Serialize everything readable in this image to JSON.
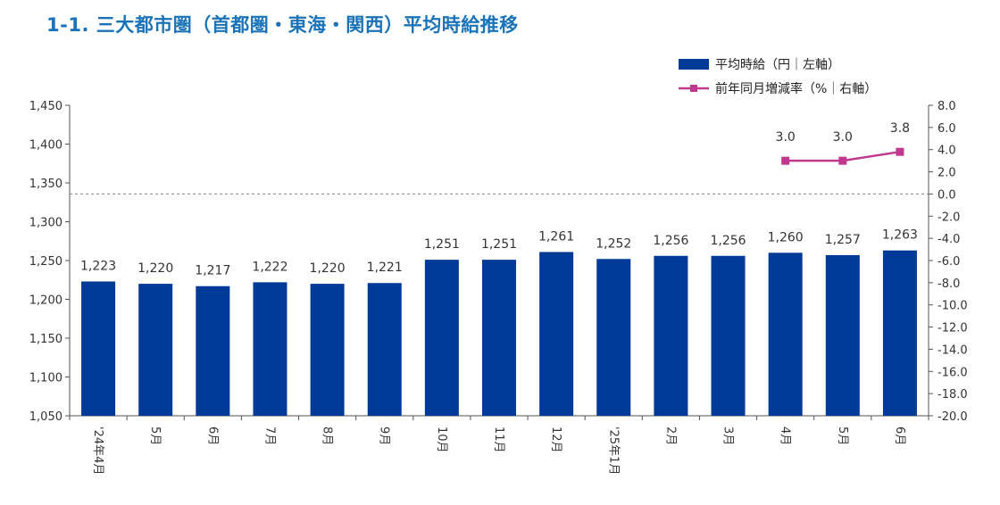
{
  "title": "1-1. 三大都市圏（首都圏・東海・関西）平均時給推移",
  "chart_data": {
    "type": "bar",
    "categories": [
      "'24年4月",
      "5月",
      "6月",
      "7月",
      "8月",
      "9月",
      "10月",
      "11月",
      "12月",
      "'25年1月",
      "2月",
      "3月",
      "4月",
      "5月",
      "6月"
    ],
    "series": [
      {
        "name": "平均時給（円｜左軸）",
        "type": "bar",
        "axis": "left",
        "color": "#003a99",
        "values": [
          1223,
          1220,
          1217,
          1222,
          1220,
          1221,
          1251,
          1251,
          1261,
          1252,
          1256,
          1256,
          1260,
          1257,
          1263
        ],
        "labels": [
          "1,223",
          "1,220",
          "1,217",
          "1,222",
          "1,220",
          "1,221",
          "1,251",
          "1,251",
          "1,261",
          "1,252",
          "1,256",
          "1,256",
          "1,260",
          "1,257",
          "1,263"
        ]
      },
      {
        "name": "前年同月増減率（%｜右軸）",
        "type": "line",
        "axis": "right",
        "color": "#c0398f",
        "values": [
          null,
          null,
          null,
          null,
          null,
          null,
          null,
          null,
          null,
          null,
          null,
          null,
          3.0,
          3.0,
          3.8
        ],
        "labels": [
          "",
          "",
          "",
          "",
          "",
          "",
          "",
          "",
          "",
          "",
          "",
          "",
          "3.0",
          "3.0",
          "3.8"
        ]
      }
    ],
    "y_left": {
      "min": 1050,
      "max": 1450,
      "ticks": [
        1450,
        1400,
        1350,
        1300,
        1250,
        1200,
        1150,
        1100,
        1050
      ],
      "tick_labels": [
        "1,450",
        "1,400",
        "1,350",
        "1,300",
        "1,250",
        "1,200",
        "1,150",
        "1,100",
        "1,050"
      ]
    },
    "y_right": {
      "min": -20,
      "max": 8,
      "ticks": [
        8,
        6,
        4,
        2,
        0,
        -2,
        -4,
        -6,
        -8,
        -10,
        -12,
        -14,
        -16,
        -18,
        -20
      ],
      "tick_labels": [
        "8.0",
        "6.0",
        "4.0",
        "2.0",
        "0.0",
        "-2.0",
        "-4.0",
        "-6.0",
        "-8.0",
        "-10.0",
        "-12.0",
        "-14.0",
        "-16.0",
        "-18.0",
        "-20.0"
      ]
    },
    "zero_line": "dashed",
    "grid": false,
    "legend": "top-right"
  }
}
